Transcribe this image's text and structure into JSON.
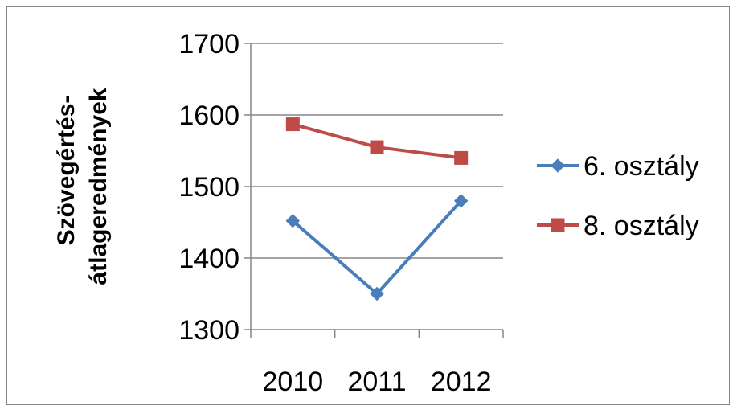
{
  "chart_data": {
    "type": "line",
    "categories": [
      "2010",
      "2011",
      "2012"
    ],
    "series": [
      {
        "name": "6. osztály",
        "values": [
          1452,
          1350,
          1480
        ],
        "color": "#4A7EBB",
        "marker": "diamond"
      },
      {
        "name": "8. osztály",
        "values": [
          1587,
          1555,
          1540
        ],
        "color": "#BE4B48",
        "marker": "square"
      }
    ],
    "title": "",
    "xlabel": "",
    "ylabel_lines": [
      "Szövegértés-",
      "átlageredmények"
    ],
    "ylim": [
      1300,
      1700
    ],
    "yticks": [
      1300,
      1400,
      1500,
      1600,
      1700
    ],
    "grid": true,
    "legend_position": "right"
  }
}
